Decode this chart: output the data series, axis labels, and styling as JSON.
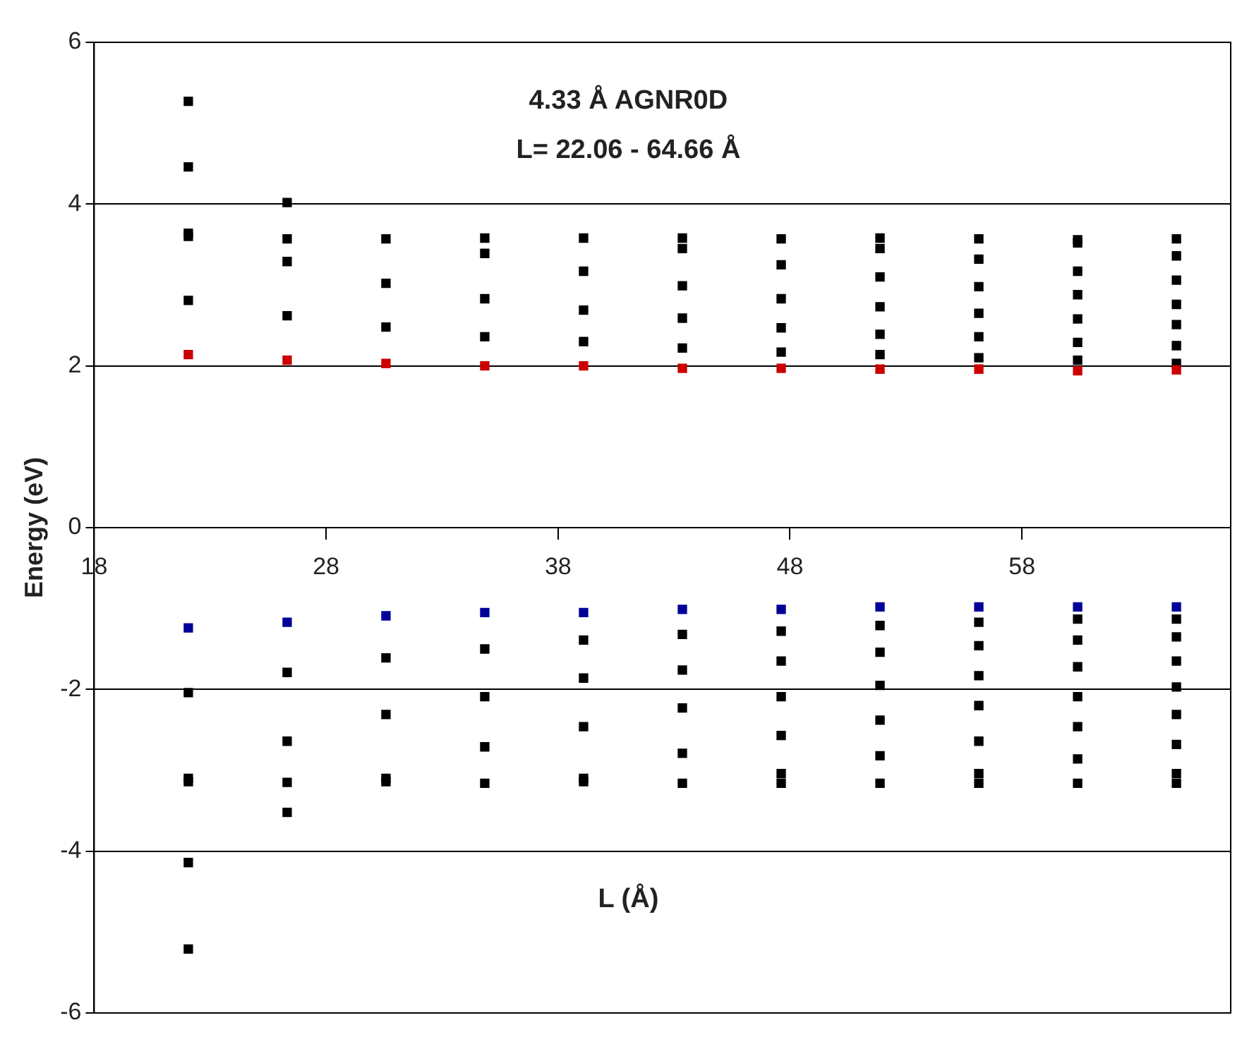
{
  "chart_data": {
    "type": "scatter",
    "title": "4.33 Å AGNR0D",
    "subtitle": "L= 22.06 - 64.66 Å",
    "xlabel": "L (Å)",
    "ylabel": "Energy (eV)",
    "xlim": [
      18,
      67
    ],
    "xticks": [
      18,
      28,
      38,
      48,
      58
    ],
    "ylim": [
      -6,
      6
    ],
    "yticks": [
      -6,
      -4,
      -2,
      0,
      2,
      4,
      6
    ],
    "grid": "y",
    "legend": false,
    "marker": "square",
    "series": [
      {
        "color": "#000000",
        "x": [
          22.06,
          22.06,
          22.06,
          22.06,
          22.06,
          22.06,
          22.06,
          22.06,
          22.06,
          22.06,
          26.32,
          26.32,
          26.32,
          26.32,
          26.32,
          26.32,
          26.32,
          26.32,
          30.58,
          30.58,
          30.58,
          30.58,
          30.58,
          30.58,
          30.58,
          34.84,
          34.84,
          34.84,
          34.84,
          34.84,
          34.84,
          34.84,
          34.84,
          39.1,
          39.1,
          39.1,
          39.1,
          39.1,
          39.1,
          39.1,
          39.1,
          39.1,
          43.36,
          43.36,
          43.36,
          43.36,
          43.36,
          43.36,
          43.36,
          43.36,
          43.36,
          43.36,
          47.62,
          47.62,
          47.62,
          47.62,
          47.62,
          47.62,
          47.62,
          47.62,
          47.62,
          47.62,
          47.62,
          51.88,
          51.88,
          51.88,
          51.88,
          51.88,
          51.88,
          51.88,
          51.88,
          51.88,
          51.88,
          51.88,
          51.88,
          56.14,
          56.14,
          56.14,
          56.14,
          56.14,
          56.14,
          56.14,
          56.14,
          56.14,
          56.14,
          56.14,
          56.14,
          56.14,
          60.4,
          60.4,
          60.4,
          60.4,
          60.4,
          60.4,
          60.4,
          60.4,
          60.4,
          60.4,
          60.4,
          60.4,
          60.4,
          60.4,
          64.66,
          64.66,
          64.66,
          64.66,
          64.66,
          64.66,
          64.66,
          64.66,
          64.66,
          64.66,
          64.66,
          64.66,
          64.66,
          64.66,
          64.66
        ],
        "values": [
          5.27,
          4.46,
          3.64,
          3.6,
          2.81,
          -2.04,
          -3.1,
          -3.14,
          -4.14,
          -5.21,
          4.02,
          3.57,
          3.29,
          2.62,
          -1.79,
          -2.64,
          -3.15,
          -3.52,
          3.57,
          3.02,
          2.48,
          -1.61,
          -2.31,
          -3.1,
          -3.14,
          3.58,
          3.39,
          2.83,
          2.36,
          -1.5,
          -2.09,
          -2.71,
          -3.16,
          3.58,
          3.17,
          2.69,
          2.3,
          -1.39,
          -1.86,
          -2.46,
          -3.1,
          -3.14,
          3.58,
          3.45,
          2.99,
          2.59,
          2.22,
          -1.32,
          -1.76,
          -2.23,
          -2.79,
          -3.16,
          3.57,
          3.25,
          2.83,
          2.47,
          2.17,
          -1.28,
          -1.65,
          -2.09,
          -2.57,
          -3.04,
          -3.16,
          3.58,
          3.45,
          3.1,
          2.73,
          2.39,
          2.14,
          -1.21,
          -1.54,
          -1.95,
          -2.38,
          -2.82,
          -3.16,
          3.57,
          3.32,
          2.98,
          2.65,
          2.36,
          2.1,
          -1.17,
          -1.46,
          -1.83,
          -2.2,
          -2.64,
          -3.04,
          -3.16,
          3.56,
          3.52,
          3.17,
          2.88,
          2.58,
          2.29,
          2.07,
          -1.13,
          -1.39,
          -1.72,
          -2.09,
          -2.46,
          -2.86,
          -3.16,
          3.57,
          3.36,
          3.06,
          2.76,
          2.51,
          2.25,
          2.03,
          -1.13,
          -1.35,
          -1.65,
          -1.97,
          -2.31,
          -2.68,
          -3.04,
          -3.16
        ]
      },
      {
        "color": "#cc0000",
        "x": [
          22.06,
          26.32,
          30.58,
          34.84,
          39.1,
          43.36,
          47.62,
          51.88,
          56.14,
          60.4,
          64.66
        ],
        "values": [
          2.14,
          2.07,
          2.03,
          2.0,
          2.0,
          1.97,
          1.97,
          1.96,
          1.96,
          1.94,
          1.95
        ]
      },
      {
        "color": "#000099",
        "x": [
          22.06,
          26.32,
          30.58,
          34.84,
          39.1,
          43.36,
          47.62,
          51.88,
          56.14,
          60.4,
          64.66
        ],
        "values": [
          -1.24,
          -1.17,
          -1.09,
          -1.05,
          -1.05,
          -1.01,
          -1.01,
          -0.98,
          -0.98,
          -0.98,
          -0.98
        ]
      }
    ]
  }
}
